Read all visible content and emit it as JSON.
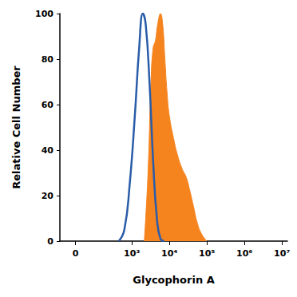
{
  "chart_data": {
    "type": "histogram",
    "x_label": "Glycophorin A",
    "y_label": "Relative Cell Number",
    "xlim": [
      -70,
      14000000
    ],
    "xticks": [
      {
        "value": 0,
        "label": "0"
      },
      {
        "value": 1000,
        "label": "10³"
      },
      {
        "value": 10000,
        "label": "10⁴"
      },
      {
        "value": 100000,
        "label": "10⁵"
      },
      {
        "value": 1000000,
        "label": "10⁶"
      },
      {
        "value": 10000000,
        "label": "10⁷"
      }
    ],
    "ylim": [
      0,
      100
    ],
    "yticks": [
      0,
      20,
      40,
      60,
      80,
      100
    ],
    "grid": false,
    "series": [
      {
        "type": "area",
        "color": "#f5841f",
        "x": [
          2150,
          2700,
          3240,
          3700,
          4240,
          4850,
          5800,
          6660,
          7600,
          8700,
          10000,
          13000,
          16400,
          21600,
          28200,
          35300,
          44300,
          55500,
          73000,
          100000
        ],
        "values": [
          0,
          30,
          70,
          85,
          88,
          95,
          100,
          95,
          80,
          65,
          55,
          45,
          38,
          32,
          28,
          22,
          15,
          8,
          3,
          0
        ]
      },
      {
        "type": "line",
        "color": "#2a5ca8",
        "x": [
          447,
          630,
          875,
          1200,
          1570,
          1970,
          2350,
          2950,
          3700,
          4650,
          5800,
          7300
        ],
        "values": [
          0,
          5,
          25,
          55,
          85,
          100,
          95,
          70,
          35,
          10,
          1,
          0
        ]
      }
    ]
  }
}
